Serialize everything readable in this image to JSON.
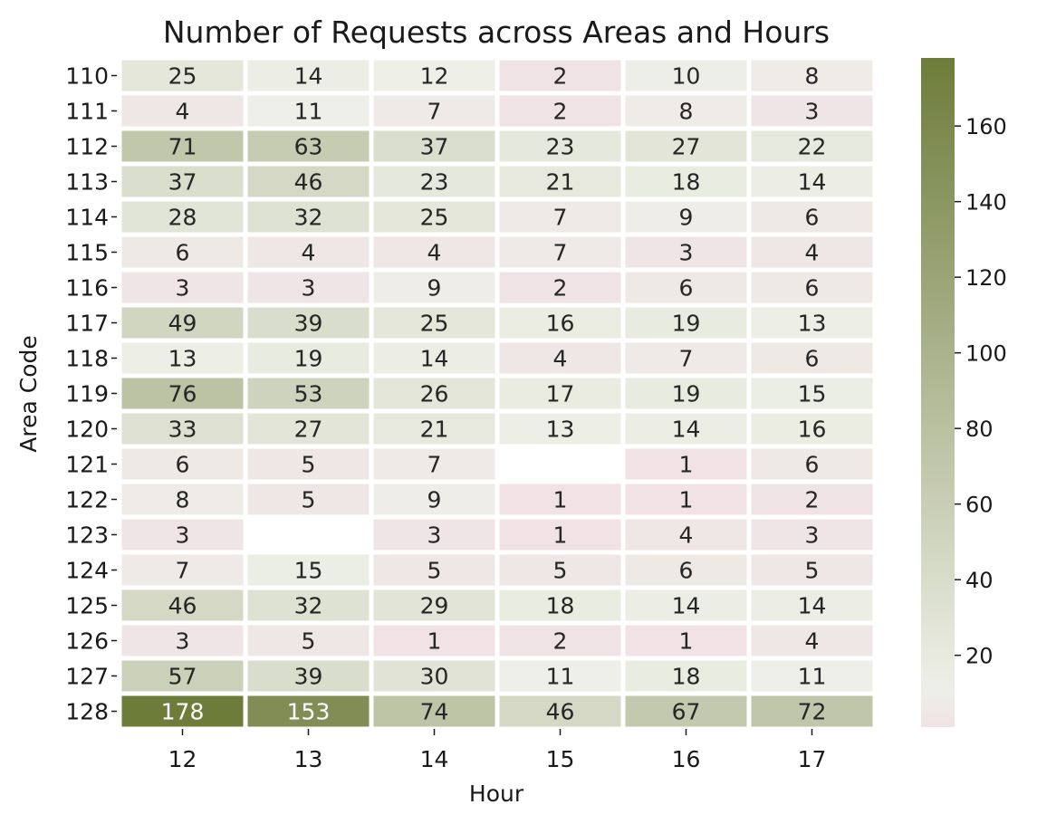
{
  "chart_data": {
    "type": "heatmap",
    "title": "Number of Requests across Areas and Hours",
    "xlabel": "Hour",
    "ylabel": "Area Code",
    "x": [
      "12",
      "13",
      "14",
      "15",
      "16",
      "17"
    ],
    "y": [
      "110",
      "111",
      "112",
      "113",
      "114",
      "115",
      "116",
      "117",
      "118",
      "119",
      "120",
      "121",
      "122",
      "123",
      "124",
      "125",
      "126",
      "127",
      "128"
    ],
    "values": [
      [
        25,
        14,
        12,
        2,
        10,
        8
      ],
      [
        4,
        11,
        7,
        2,
        8,
        3
      ],
      [
        71,
        63,
        37,
        23,
        27,
        22
      ],
      [
        37,
        46,
        23,
        21,
        18,
        14
      ],
      [
        28,
        32,
        25,
        7,
        9,
        6
      ],
      [
        6,
        4,
        4,
        7,
        3,
        4
      ],
      [
        3,
        3,
        9,
        2,
        6,
        6
      ],
      [
        49,
        39,
        25,
        16,
        19,
        13
      ],
      [
        13,
        19,
        14,
        4,
        7,
        6
      ],
      [
        76,
        53,
        26,
        17,
        19,
        15
      ],
      [
        33,
        27,
        21,
        13,
        14,
        16
      ],
      [
        6,
        5,
        7,
        null,
        1,
        6
      ],
      [
        8,
        5,
        9,
        1,
        1,
        2
      ],
      [
        3,
        null,
        3,
        1,
        4,
        3
      ],
      [
        7,
        15,
        5,
        5,
        6,
        5
      ],
      [
        46,
        32,
        29,
        18,
        14,
        14
      ],
      [
        3,
        5,
        1,
        2,
        1,
        4
      ],
      [
        57,
        39,
        30,
        11,
        18,
        11
      ],
      [
        178,
        153,
        74,
        46,
        67,
        72
      ]
    ],
    "colorbar": {
      "vmin": 1,
      "vmax": 178,
      "ticks": [
        20,
        40,
        60,
        80,
        100,
        120,
        140,
        160
      ]
    },
    "colors": {
      "low": "#f0e2e5",
      "mid": "#eef0e8",
      "high": "#6e7c3a",
      "text_dark": "#262626",
      "text_light": "#ffffff"
    }
  }
}
